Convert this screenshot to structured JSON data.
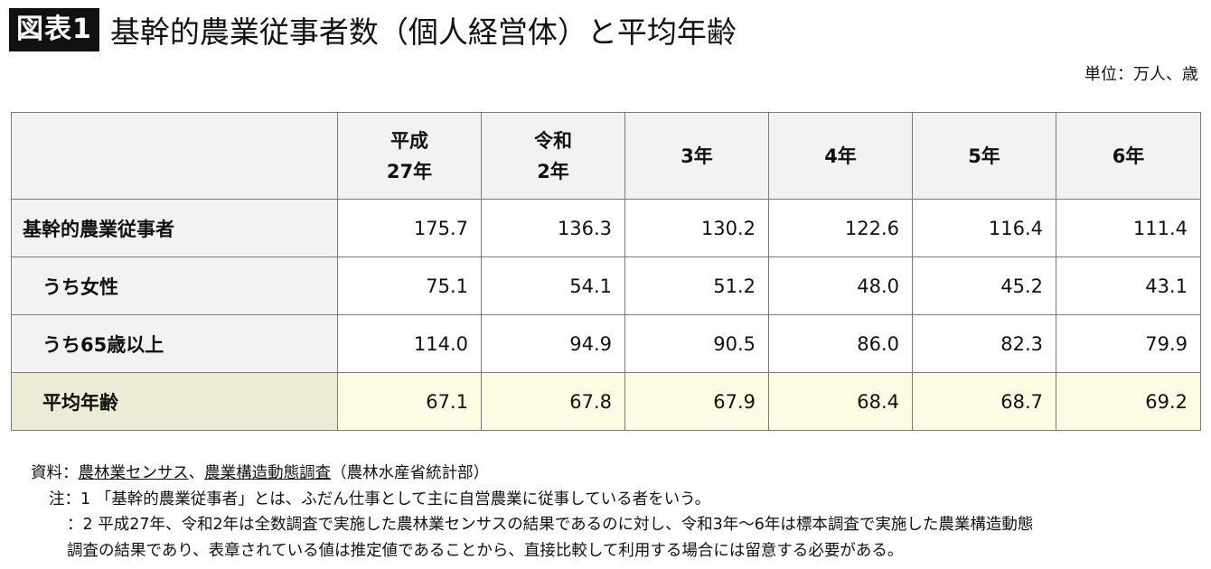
{
  "title": {
    "badge": "図表1",
    "text": "基幹的農業従事者数（個人経営体）と平均年齢"
  },
  "unit": "単位：万人、歳",
  "table": {
    "headers": [
      "平成\n27年",
      "令和\n2年",
      "3年",
      "4年",
      "5年",
      "6年"
    ],
    "rows": [
      {
        "label": "基幹的農業従事者",
        "values": [
          "175.7",
          "136.3",
          "130.2",
          "122.6",
          "116.4",
          "111.4"
        ]
      },
      {
        "label": "うち女性",
        "values": [
          "75.1",
          "54.1",
          "51.2",
          "48.0",
          "45.2",
          "43.1"
        ]
      },
      {
        "label": "うち65歳以上",
        "values": [
          "114.0",
          "94.9",
          "90.5",
          "86.0",
          "82.3",
          "79.9"
        ]
      },
      {
        "label": "平均年齢",
        "values": [
          "67.1",
          "67.8",
          "67.9",
          "68.4",
          "68.7",
          "69.2"
        ]
      }
    ]
  },
  "notes": {
    "source_prefix": "資料：",
    "source_link1": "農林業センサス",
    "source_sep": "、",
    "source_link2": "農業構造動態調査",
    "source_suffix": "（農林水産省統計部）",
    "note1": "注：1 「基幹的農業従事者」とは、ふだん仕事として主に自営農業に従事している者をいう。",
    "note2_line1": "：2 平成27年、令和2年は全数調査で実施した農林業センサスの結果であるのに対し、令和3年～6年は標本調査で実施した農業構造動態",
    "note2_line2": "調査の結果であり、表章されている値は推定値であることから、直接比較して利用する場合には留意する必要がある。"
  }
}
